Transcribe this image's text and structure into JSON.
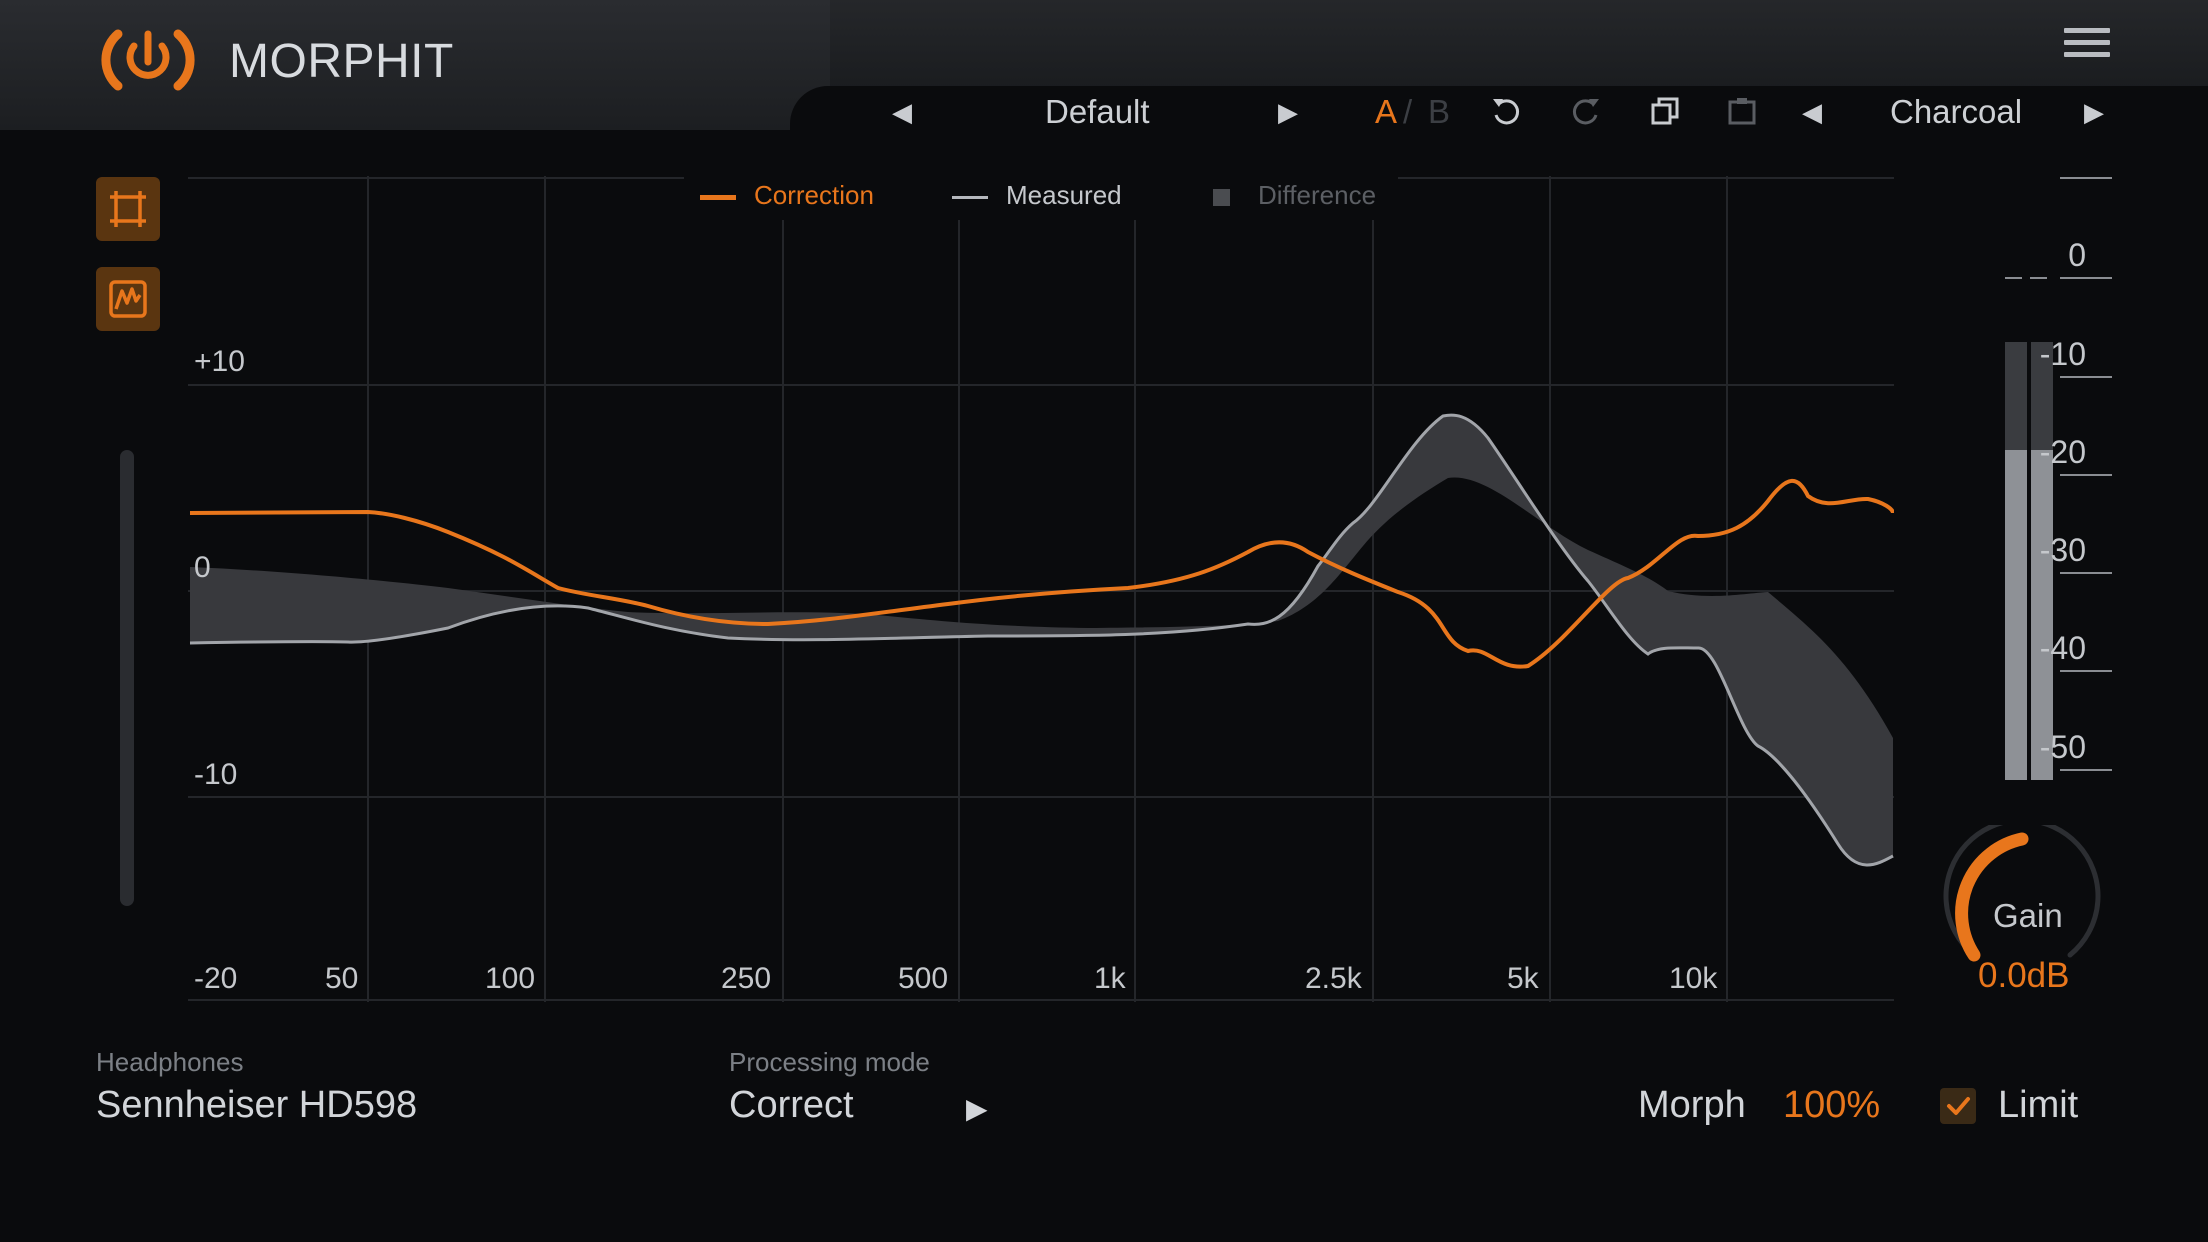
{
  "app": {
    "title": "MORPHIT"
  },
  "toolbar": {
    "preset_name": "Default",
    "ab_a": "A",
    "ab_sep": "/",
    "ab_b": "B",
    "theme_name": "Charcoal"
  },
  "legend": {
    "correction": "Correction",
    "measured": "Measured",
    "difference": "Difference"
  },
  "graph": {
    "y_labels": [
      "+10",
      "0",
      "-10",
      "-20"
    ],
    "x_labels": [
      "50",
      "100",
      "250",
      "500",
      "1k",
      "2.5k",
      "5k",
      "10k"
    ]
  },
  "meter": {
    "ticks": [
      "0",
      "-10",
      "-20",
      "-30",
      "-40",
      "-50"
    ],
    "levels": [
      0.82,
      0.82
    ]
  },
  "gain": {
    "label": "Gain",
    "value": "0.0dB"
  },
  "headphones": {
    "label": "Headphones",
    "value": "Sennheiser HD598"
  },
  "processing_mode": {
    "label": "Processing mode",
    "value": "Correct"
  },
  "morph": {
    "label": "Morph",
    "value": "100%"
  },
  "limit": {
    "label": "Limit",
    "checked": true
  },
  "colors": {
    "accent": "#e8761c",
    "background": "#0a0b0d",
    "measured": "#9a9da2",
    "difference": "#3a3c40"
  }
}
